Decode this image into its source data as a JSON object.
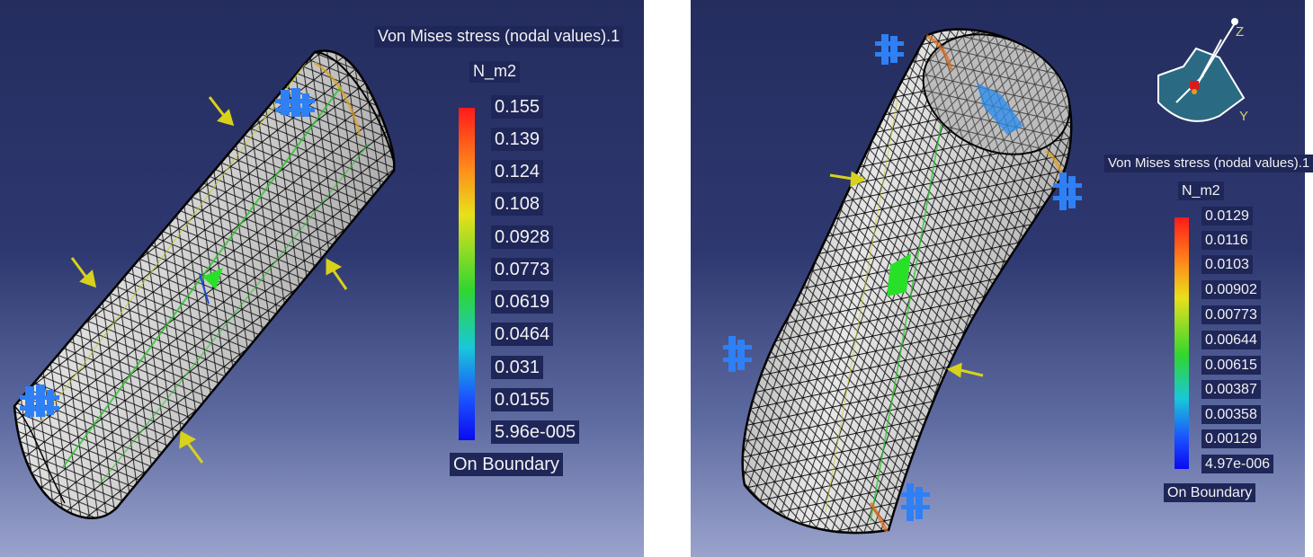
{
  "left": {
    "legend": {
      "title": "Von Mises stress (nodal values).1",
      "unit": "N_m2",
      "values": [
        "0.155",
        "0.139",
        "0.124",
        "0.108",
        "0.0928",
        "0.0773",
        "0.0619",
        "0.0464",
        "0.031",
        "0.0155",
        "5.96e-005"
      ],
      "footer": "On Boundary"
    }
  },
  "right": {
    "legend": {
      "title": "Von Mises stress (nodal values).1",
      "unit": "N_m2",
      "values": [
        "0.0129",
        "0.0116",
        "0.0103",
        "0.00902",
        "0.00773",
        "0.00644",
        "0.00615",
        "0.00387",
        "0.00358",
        "0.00129",
        "4.97e-006"
      ],
      "footer": "On Boundary"
    },
    "compass": {
      "z_label": "Z",
      "y_label": "Y"
    }
  },
  "colors": {
    "background_top": "#242d5e",
    "background_bottom": "#9aa3cc",
    "legend_box": "#1f2658",
    "load_arrow": "#d8d21a",
    "restraint": "#2f7ff5",
    "mesh": "#111111",
    "surface": "#e6e6e6"
  }
}
